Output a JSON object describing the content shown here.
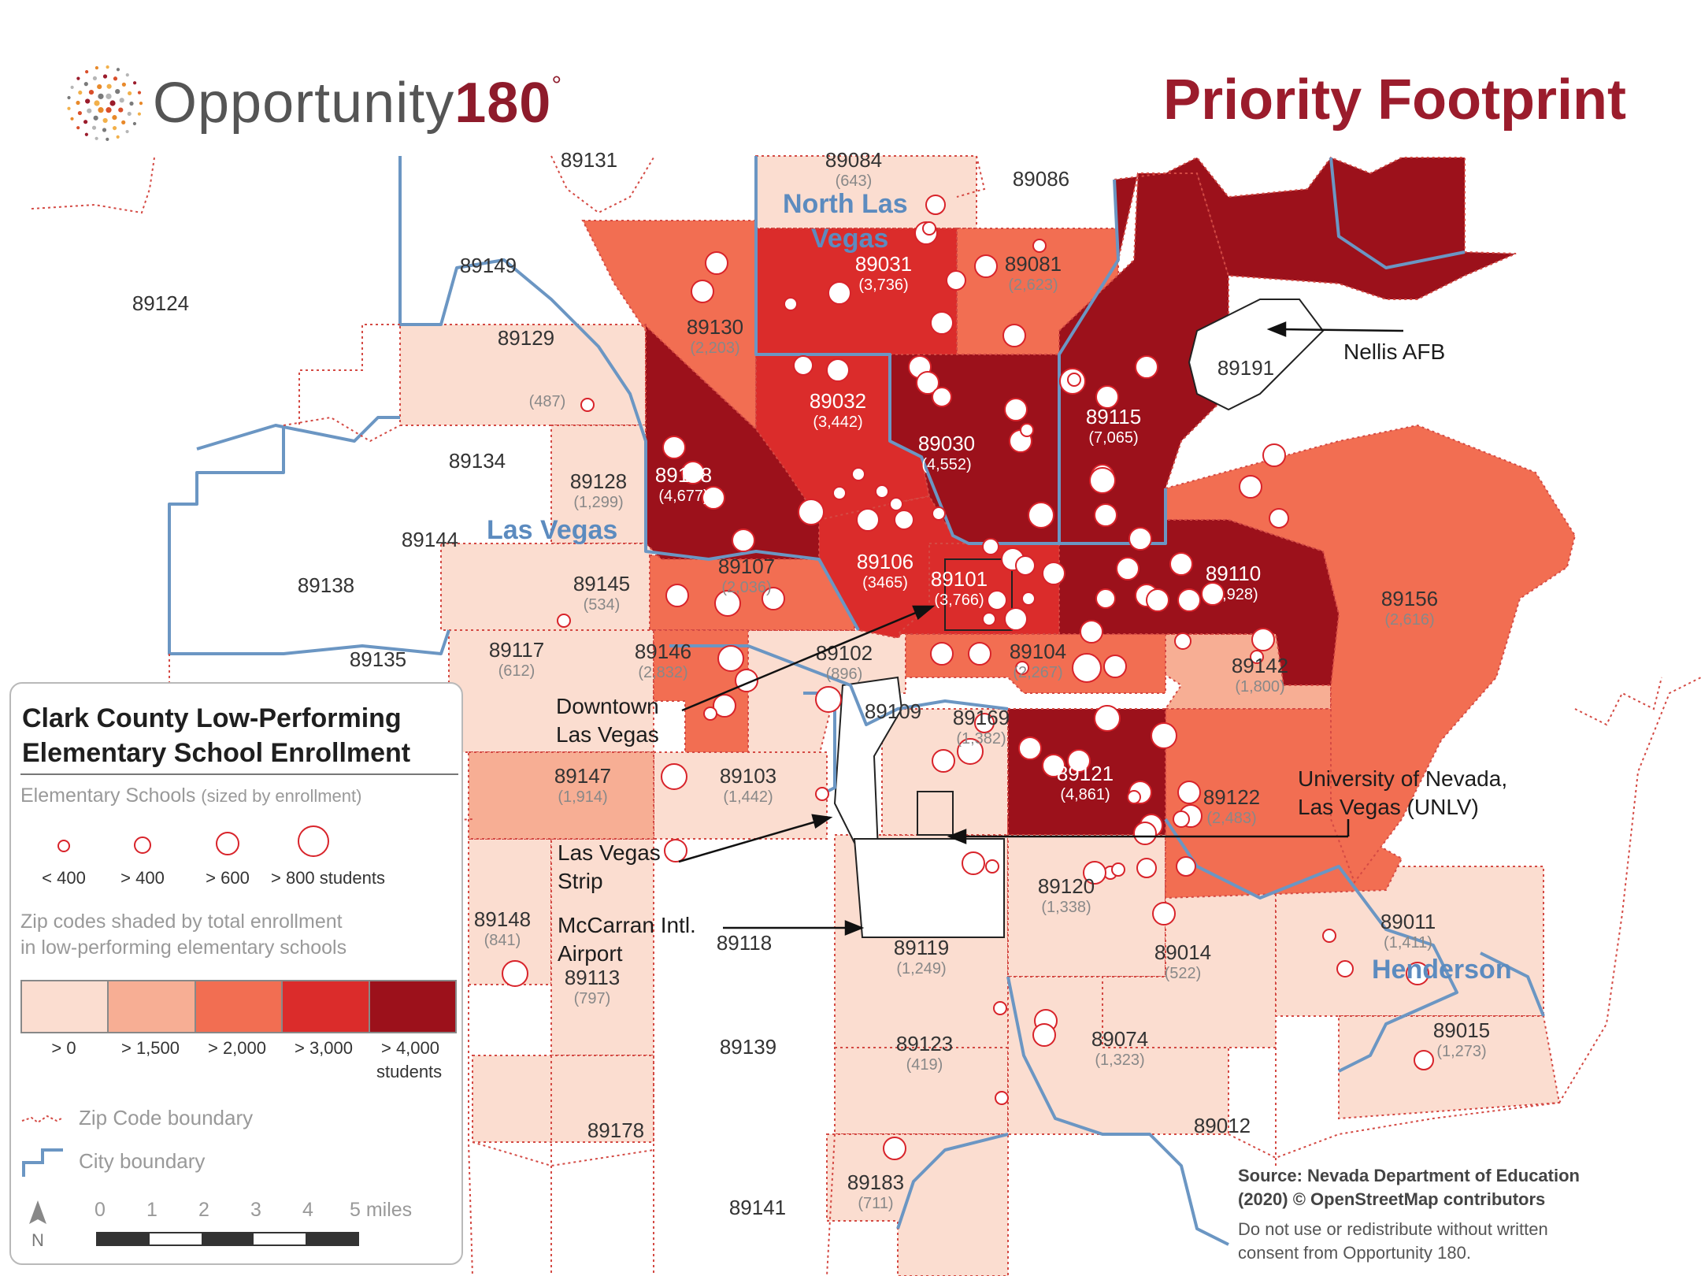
{
  "header": {
    "logo_word": "Opportunity",
    "logo_number": "180",
    "logo_degree": "°",
    "title": "Priority Footprint"
  },
  "colors": {
    "gt0": "#fbddd0",
    "gt1500": "#f7ae94",
    "gt2000": "#f26e52",
    "gt3000": "#db2c2b",
    "gt4000": "#9c111b",
    "city_boundary": "#6b96c3",
    "zip_boundary": "#d44a44",
    "school_ring": "#d8232a",
    "title": "#9b1c2c"
  },
  "legend": {
    "title_line1": "Clark County Low-Performing",
    "title_line2": "Elementary School Enrollment",
    "schools_label": "Elementary Schools",
    "schools_note": "(sized by enrollment)",
    "size_classes": [
      {
        "label": "< 400"
      },
      {
        "label": "> 400"
      },
      {
        "label": "> 600"
      },
      {
        "label": "> 800 students"
      }
    ],
    "shade_line1": "Zip codes shaded by total enrollment",
    "shade_line2": "in low-performing elementary schools",
    "shade_classes": [
      {
        "label": "> 0",
        "color": "#fbddd0"
      },
      {
        "label": "> 1,500",
        "color": "#f7ae94"
      },
      {
        "label": "> 2,000",
        "color": "#f26e52"
      },
      {
        "label": "> 3,000",
        "color": "#db2c2b"
      },
      {
        "label": "> 4,000",
        "color": "#9c111b"
      }
    ],
    "shade_unit": "students",
    "zip_key": "Zip Code boundary",
    "city_key": "City boundary",
    "scale_labels": [
      "0",
      "1",
      "2",
      "3",
      "4",
      "5 miles"
    ],
    "north": "N"
  },
  "places": {
    "north_las_vegas_1": "North Las",
    "north_las_vegas_2": "Vegas",
    "las_vegas": "Las Vegas",
    "henderson": "Henderson"
  },
  "callouts": {
    "nellis": "Nellis AFB",
    "downtown_1": "Downtown",
    "downtown_2": "Las Vegas",
    "unlv_1": "University of Nevada,",
    "unlv_2": "Las Vegas (UNLV)",
    "strip_1": "Las Vegas",
    "strip_2": "Strip",
    "airport_1": "McCarran Intl.",
    "airport_2": "Airport"
  },
  "zip_labels": [
    {
      "zip": "89131",
      "enrollment": ""
    },
    {
      "zip": "89084",
      "enrollment": "(643)"
    },
    {
      "zip": "89086",
      "enrollment": ""
    },
    {
      "zip": "89149",
      "enrollment": ""
    },
    {
      "zip": "89124",
      "enrollment": ""
    },
    {
      "zip": "89031",
      "enrollment": "(3,736)"
    },
    {
      "zip": "89081",
      "enrollment": "(2,623)"
    },
    {
      "zip": "89129",
      "enrollment": ""
    },
    {
      "zip": "",
      "enrollment": "(487)"
    },
    {
      "zip": "89130",
      "enrollment": "(2,203)"
    },
    {
      "zip": "89191",
      "enrollment": ""
    },
    {
      "zip": "89032",
      "enrollment": "(3,442)"
    },
    {
      "zip": "89115",
      "enrollment": "(7,065)"
    },
    {
      "zip": "89030",
      "enrollment": "(4,552)"
    },
    {
      "zip": "89134",
      "enrollment": ""
    },
    {
      "zip": "89128",
      "enrollment": "(1,299)"
    },
    {
      "zip": "89108",
      "enrollment": "(4,677)"
    },
    {
      "zip": "89144",
      "enrollment": ""
    },
    {
      "zip": "89107",
      "enrollment": "(2,036)"
    },
    {
      "zip": "89106",
      "enrollment": "(3465)"
    },
    {
      "zip": "89101",
      "enrollment": "(3,766)"
    },
    {
      "zip": "89110",
      "enrollment": "(4,928)"
    },
    {
      "zip": "89138",
      "enrollment": ""
    },
    {
      "zip": "89145",
      "enrollment": "(534)"
    },
    {
      "zip": "89156",
      "enrollment": "(2,616)"
    },
    {
      "zip": "89135",
      "enrollment": ""
    },
    {
      "zip": "89117",
      "enrollment": "(612)"
    },
    {
      "zip": "89146",
      "enrollment": "(2,832)"
    },
    {
      "zip": "89102",
      "enrollment": "(896)"
    },
    {
      "zip": "89104",
      "enrollment": "(2,267)"
    },
    {
      "zip": "89142",
      "enrollment": "(1,800)"
    },
    {
      "zip": "89109",
      "enrollment": ""
    },
    {
      "zip": "89169",
      "enrollment": "(1,382)"
    },
    {
      "zip": "89147",
      "enrollment": "(1,914)"
    },
    {
      "zip": "89103",
      "enrollment": "(1,442)"
    },
    {
      "zip": "89121",
      "enrollment": "(4,861)"
    },
    {
      "zip": "89122",
      "enrollment": "(2,483)"
    },
    {
      "zip": "89120",
      "enrollment": "(1,338)"
    },
    {
      "zip": "89148",
      "enrollment": "(841)"
    },
    {
      "zip": "89118",
      "enrollment": ""
    },
    {
      "zip": "89119",
      "enrollment": "(1,249)"
    },
    {
      "zip": "89011",
      "enrollment": "(1,411)"
    },
    {
      "zip": "89014",
      "enrollment": "(522)"
    },
    {
      "zip": "89113",
      "enrollment": "(797)"
    },
    {
      "zip": "89015",
      "enrollment": "(1,273)"
    },
    {
      "zip": "89139",
      "enrollment": ""
    },
    {
      "zip": "89123",
      "enrollment": "(419)"
    },
    {
      "zip": "89074",
      "enrollment": "(1,323)"
    },
    {
      "zip": "89178",
      "enrollment": ""
    },
    {
      "zip": "89012",
      "enrollment": ""
    },
    {
      "zip": "89183",
      "enrollment": "(711)"
    },
    {
      "zip": "89141",
      "enrollment": ""
    }
  ],
  "source": {
    "line1": "Source: Nevada Department of Education",
    "line2": "(2020) © OpenStreetMap contributors",
    "note1": "Do not use or redistribute without written",
    "note2": "consent from Opportunity 180."
  }
}
